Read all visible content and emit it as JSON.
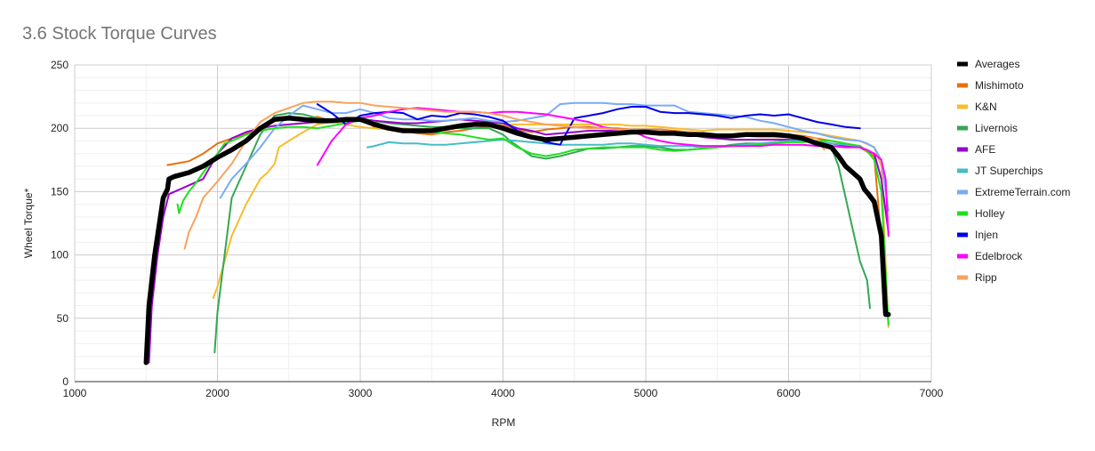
{
  "chart_data": {
    "type": "line",
    "title": "3.6 Stock Torque Curves",
    "xlabel": "RPM",
    "ylabel": "Wheel Torque*",
    "xlim": [
      1000,
      7000
    ],
    "ylim": [
      0,
      250
    ],
    "xticks": [
      1000,
      2000,
      3000,
      4000,
      5000,
      6000,
      7000
    ],
    "yticks": [
      0,
      50,
      100,
      150,
      200,
      250
    ],
    "grid": true,
    "legend_position": "right",
    "series": [
      {
        "name": "Averages",
        "color": "#000000",
        "x": [
          1500,
          1520,
          1560,
          1620,
          1650,
          1660,
          1700,
          1800,
          1900,
          2000,
          2100,
          2200,
          2300,
          2400,
          2500,
          2600,
          2700,
          2800,
          2900,
          3000,
          3100,
          3200,
          3300,
          3400,
          3500,
          3600,
          3700,
          3800,
          3900,
          4000,
          4100,
          4200,
          4300,
          4400,
          4500,
          4600,
          4700,
          4800,
          4900,
          5000,
          5100,
          5200,
          5300,
          5400,
          5500,
          5600,
          5700,
          5800,
          5900,
          6000,
          6100,
          6200,
          6300,
          6350,
          6400,
          6450,
          6500,
          6530,
          6560,
          6600,
          6650,
          6680,
          6700
        ],
        "y": [
          15,
          60,
          100,
          145,
          152,
          160,
          162,
          165,
          170,
          177,
          183,
          190,
          200,
          207,
          208,
          207,
          206,
          206,
          207,
          207,
          203,
          200,
          198,
          198,
          198,
          200,
          202,
          203,
          203,
          200,
          196,
          193,
          191,
          192,
          193,
          194,
          195,
          196,
          197,
          197,
          196,
          196,
          195,
          195,
          194,
          194,
          195,
          195,
          195,
          194,
          192,
          188,
          185,
          178,
          170,
          165,
          160,
          152,
          148,
          142,
          115,
          53,
          53
        ]
      },
      {
        "name": "Mishimoto",
        "color": "#e8710a",
        "x": [
          1650,
          1700,
          1800,
          1900,
          2000,
          2100,
          2200,
          2300,
          2400,
          2500,
          2600,
          2700,
          2800,
          2900,
          3000,
          3100,
          3200,
          3300,
          3400,
          3500,
          3600,
          3700,
          3800,
          3900,
          4000,
          4100,
          4200,
          4300,
          4400,
          4500,
          4600,
          4700,
          4800,
          4900,
          5000,
          5100,
          5200,
          5300,
          5400,
          5500,
          5600,
          5700,
          5800,
          5900,
          6000,
          6100,
          6200,
          6300,
          6400,
          6500,
          6600,
          6700
        ],
        "y": [
          171,
          172,
          174,
          180,
          188,
          192,
          196,
          200,
          206,
          207,
          207,
          209,
          206,
          206,
          208,
          201,
          199,
          198,
          196,
          195,
          197,
          198,
          200,
          201,
          202,
          199,
          197,
          199,
          200,
          201,
          201,
          200,
          200,
          199,
          199,
          199,
          198,
          197,
          196,
          195,
          195,
          196,
          196,
          196,
          195,
          194,
          192,
          190,
          188,
          185,
          178,
          45
        ]
      },
      {
        "name": "K&N",
        "color": "#f9bc2c",
        "x": [
          1970,
          2000,
          2050,
          2100,
          2200,
          2300,
          2350,
          2400,
          2430,
          2500,
          2600,
          2700,
          2800,
          2900,
          3000,
          3100,
          3200,
          3300,
          3400,
          3500,
          3600,
          3700,
          3800,
          3900,
          4000,
          4100,
          4200,
          4300,
          4400,
          4500,
          4600,
          4700,
          4800,
          4900,
          5000,
          5100,
          5200,
          5300,
          5400,
          5500,
          5600,
          5700,
          5800,
          5900,
          6000,
          6100,
          6200,
          6300,
          6400,
          6500,
          6600,
          6650,
          6700
        ],
        "y": [
          66,
          75,
          95,
          115,
          140,
          160,
          165,
          172,
          185,
          190,
          197,
          203,
          205,
          203,
          201,
          200,
          199,
          200,
          199,
          200,
          201,
          201,
          202,
          202,
          203,
          203,
          203,
          203,
          203,
          203,
          203,
          203,
          203,
          202,
          202,
          201,
          200,
          199,
          198,
          199,
          199,
          199,
          199,
          199,
          198,
          197,
          196,
          194,
          192,
          190,
          185,
          170,
          43
        ]
      },
      {
        "name": "Livernois",
        "color": "#34a853",
        "x": [
          1980,
          2000,
          2050,
          2100,
          2200,
          2300,
          2400,
          2500,
          2600,
          2700,
          2800,
          2900,
          3000,
          3100,
          3200,
          3300,
          3400,
          3500,
          3600,
          3700,
          3800,
          3900,
          4000,
          4050,
          4100,
          4200,
          4300,
          4400,
          4500,
          4600,
          4700,
          4800,
          4900,
          5000,
          5100,
          5200,
          5300,
          5400,
          5500,
          5600,
          5700,
          5800,
          5900,
          6000,
          6100,
          6200,
          6300,
          6350,
          6400,
          6450,
          6500,
          6550,
          6570
        ],
        "y": [
          23,
          55,
          100,
          145,
          170,
          195,
          210,
          212,
          211,
          208,
          206,
          205,
          208,
          206,
          204,
          203,
          202,
          201,
          201,
          200,
          200,
          200,
          195,
          190,
          186,
          178,
          176,
          178,
          181,
          184,
          184,
          185,
          186,
          186,
          185,
          183,
          183,
          184,
          185,
          187,
          188,
          188,
          189,
          190,
          190,
          189,
          185,
          170,
          145,
          120,
          95,
          80,
          58
        ]
      },
      {
        "name": "AFE",
        "color": "#9900cc",
        "x": [
          1520,
          1540,
          1580,
          1620,
          1660,
          1700,
          1800,
          1900,
          2000,
          2100,
          2200,
          2300,
          2400,
          2500,
          2600,
          2700,
          2800,
          2900,
          3000,
          3100,
          3200,
          3300,
          3400,
          3500,
          3600,
          3700,
          3800,
          3900,
          4000,
          4100,
          4200,
          4300,
          4400,
          4500,
          4600,
          4700,
          4800,
          4900,
          5000,
          5100,
          5200,
          5300,
          5400,
          5500,
          5600,
          5700,
          5800,
          5900,
          6000,
          6100,
          6200,
          6300,
          6400,
          6500,
          6600,
          6650,
          6700
        ],
        "y": [
          15,
          60,
          100,
          130,
          148,
          150,
          155,
          160,
          180,
          192,
          197,
          200,
          202,
          203,
          204,
          205,
          206,
          207,
          207,
          206,
          205,
          204,
          204,
          205,
          206,
          207,
          206,
          205,
          204,
          200,
          198,
          195,
          196,
          197,
          198,
          198,
          198,
          197,
          196,
          196,
          195,
          195,
          193,
          192,
          191,
          191,
          191,
          191,
          191,
          190,
          189,
          188,
          186,
          185,
          180,
          160,
          118
        ]
      },
      {
        "name": "JT Superchips",
        "color": "#46bdc6",
        "x": [
          3050,
          3100,
          3200,
          3300,
          3400,
          3500,
          3600,
          3700,
          3800,
          3900,
          4000,
          4100,
          4200,
          4300,
          4400,
          4500,
          4600,
          4700,
          4800,
          4900,
          5000,
          5100,
          5200,
          5300,
          5400,
          5500,
          5600,
          5700,
          5800,
          5900,
          6000,
          6100,
          6200,
          6300,
          6400,
          6500
        ],
        "y": [
          185,
          186,
          189,
          188,
          188,
          187,
          187,
          188,
          189,
          190,
          191,
          190,
          189,
          188,
          187,
          187,
          187,
          187,
          188,
          188,
          187,
          186,
          186,
          186,
          185,
          185,
          186,
          187,
          188,
          189,
          190,
          190,
          189,
          188,
          187,
          186
        ]
      },
      {
        "name": "ExtremeTerrain.com",
        "color": "#7baaf7",
        "x": [
          2020,
          2100,
          2200,
          2300,
          2400,
          2500,
          2600,
          2700,
          2800,
          2900,
          3000,
          3100,
          3200,
          3300,
          3400,
          3500,
          3600,
          3700,
          3800,
          3900,
          4000,
          4100,
          4200,
          4300,
          4400,
          4500,
          4600,
          4700,
          4800,
          4900,
          5000,
          5100,
          5200,
          5300,
          5400,
          5500,
          5600,
          5700,
          5800,
          5900,
          6000,
          6100,
          6200,
          6300,
          6400,
          6500,
          6550,
          6600,
          6650,
          6700
        ],
        "y": [
          145,
          160,
          172,
          185,
          200,
          210,
          218,
          215,
          212,
          212,
          215,
          212,
          208,
          207,
          207,
          206,
          206,
          207,
          208,
          206,
          205,
          206,
          208,
          210,
          219,
          220,
          220,
          220,
          219,
          219,
          218,
          218,
          218,
          213,
          212,
          211,
          210,
          209,
          206,
          204,
          201,
          198,
          196,
          193,
          191,
          190,
          188,
          185,
          175,
          135
        ]
      },
      {
        "name": "Holley",
        "color": "#1ee11e",
        "x": [
          1720,
          1730,
          1760,
          1800,
          1850,
          1900,
          2000,
          2050,
          2100,
          2200,
          2300,
          2400,
          2500,
          2600,
          2700,
          2800,
          2900,
          3000,
          3100,
          3200,
          3300,
          3400,
          3500,
          3600,
          3700,
          3800,
          3900,
          4000,
          4100,
          4200,
          4300,
          4400,
          4500,
          4600,
          4700,
          4800,
          4900,
          5000,
          5100,
          5200,
          5300,
          5400,
          5500,
          5600,
          5700,
          5800,
          5900,
          6000,
          6100,
          6200,
          6300,
          6400,
          6500,
          6550,
          6600,
          6650,
          6700
        ],
        "y": [
          140,
          133,
          143,
          150,
          157,
          165,
          180,
          188,
          190,
          195,
          198,
          200,
          201,
          201,
          200,
          202,
          204,
          206,
          205,
          200,
          199,
          197,
          197,
          196,
          195,
          193,
          191,
          192,
          185,
          180,
          178,
          180,
          183,
          184,
          185,
          185,
          185,
          185,
          183,
          182,
          183,
          184,
          185,
          186,
          186,
          187,
          188,
          189,
          189,
          190,
          190,
          188,
          186,
          182,
          175,
          150,
          45
        ]
      },
      {
        "name": "Injen",
        "color": "#0000e6",
        "x": [
          2700,
          2800,
          2900,
          3000,
          3100,
          3200,
          3300,
          3400,
          3500,
          3600,
          3700,
          3800,
          3900,
          4000,
          4100,
          4200,
          4300,
          4400,
          4500,
          4600,
          4700,
          4800,
          4900,
          5000,
          5100,
          5200,
          5300,
          5400,
          5500,
          5600,
          5700,
          5800,
          5900,
          6000,
          6100,
          6200,
          6300,
          6400,
          6500
        ],
        "y": [
          219,
          212,
          203,
          210,
          212,
          213,
          212,
          207,
          210,
          209,
          212,
          211,
          209,
          206,
          198,
          194,
          189,
          187,
          208,
          210,
          212,
          215,
          217,
          217,
          213,
          212,
          212,
          211,
          210,
          208,
          210,
          211,
          210,
          211,
          208,
          205,
          203,
          201,
          200
        ]
      },
      {
        "name": "Edelbrock",
        "color": "#ff00ff",
        "x": [
          2700,
          2800,
          2900,
          3000,
          3100,
          3200,
          3300,
          3400,
          3500,
          3600,
          3700,
          3800,
          3900,
          4000,
          4100,
          4200,
          4300,
          4400,
          4500,
          4600,
          4700,
          4800,
          4900,
          5000,
          5100,
          5200,
          5300,
          5400,
          5500,
          5600,
          5700,
          5800,
          5900,
          6000,
          6100,
          6200,
          6300,
          6400,
          6500,
          6550,
          6600,
          6650,
          6680,
          6700
        ],
        "y": [
          171,
          190,
          203,
          208,
          210,
          213,
          215,
          216,
          215,
          214,
          213,
          213,
          212,
          213,
          213,
          212,
          211,
          209,
          207,
          205,
          201,
          199,
          198,
          193,
          190,
          188,
          187,
          186,
          186,
          186,
          186,
          186,
          187,
          187,
          187,
          186,
          186,
          185,
          185,
          183,
          180,
          175,
          160,
          115
        ]
      },
      {
        "name": "Ripp",
        "color": "#f6a35f",
        "x": [
          1770,
          1800,
          1850,
          1900,
          2000,
          2050,
          2100,
          2200,
          2300,
          2400,
          2500,
          2600,
          2700,
          2800,
          2900,
          3000,
          3100,
          3200,
          3300,
          3400,
          3500,
          3600,
          3700,
          3800,
          3900,
          4000,
          4100,
          4200,
          4300,
          4400,
          4500,
          4600,
          4700,
          4800,
          4900,
          5000,
          5100,
          5200,
          5300,
          5400,
          5500,
          5600,
          5700,
          5800,
          5900,
          6000,
          6100,
          6200,
          6250
        ],
        "y": [
          105,
          118,
          130,
          145,
          158,
          165,
          172,
          190,
          205,
          212,
          216,
          220,
          221,
          221,
          220,
          220,
          218,
          217,
          216,
          215,
          214,
          213,
          213,
          213,
          212,
          210,
          207,
          205,
          203,
          202,
          201,
          200,
          200,
          199,
          199,
          198,
          198,
          197,
          197,
          196,
          195,
          195,
          194,
          193,
          193,
          193,
          193,
          192,
          183
        ]
      }
    ]
  }
}
